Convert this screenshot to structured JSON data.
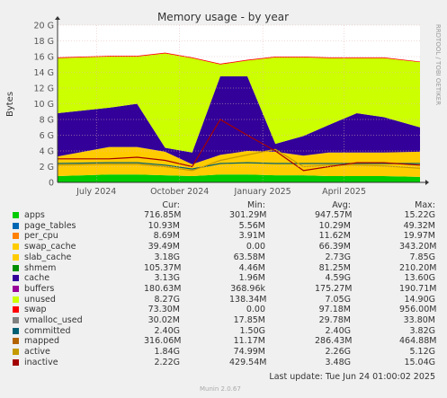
{
  "chart_data": {
    "type": "area",
    "title": "Memory usage - by year",
    "ylabel": "Bytes",
    "side_label": "RRDTOOL / TOBI OETIKER",
    "ylim": [
      0,
      20
    ],
    "y_unit": "G",
    "y_ticks": [
      "0",
      "2 G",
      "4 G",
      "6 G",
      "8 G",
      "10 G",
      "12 G",
      "14 G",
      "16 G",
      "18 G",
      "20 G"
    ],
    "x_ticks": [
      "July 2024",
      "October 2024",
      "January 2025",
      "April 2025"
    ],
    "x_tick_dates": [
      "2024-07-01",
      "2024-10-01",
      "2025-01-01",
      "2025-04-01"
    ],
    "x_range": [
      "2024-05-19",
      "2025-06-24"
    ],
    "grid": true,
    "columns": [
      "Cur:",
      "Min:",
      "Avg:",
      "Max:"
    ],
    "legend": [
      {
        "name": "apps",
        "color": "#00cc00",
        "cur": "716.85M",
        "min": "301.29M",
        "avg": "947.57M",
        "max": "15.22G"
      },
      {
        "name": "page_tables",
        "color": "#0066b3",
        "cur": "10.93M",
        "min": "5.56M",
        "avg": "10.29M",
        "max": "49.32M"
      },
      {
        "name": "per_cpu",
        "color": "#ff8000",
        "cur": "8.69M",
        "min": "3.91M",
        "avg": "11.62M",
        "max": "19.97M"
      },
      {
        "name": "swap_cache",
        "color": "#ffcc00",
        "cur": "39.49M",
        "min": "0.00",
        "avg": "66.39M",
        "max": "343.20M"
      },
      {
        "name": "slab_cache",
        "color": "#ffcc00",
        "cur": "3.18G",
        "min": "63.58M",
        "avg": "2.73G",
        "max": "7.85G"
      },
      {
        "name": "shmem",
        "color": "#008f00",
        "cur": "105.37M",
        "min": "4.46M",
        "avg": "81.25M",
        "max": "210.20M"
      },
      {
        "name": "cache",
        "color": "#330099",
        "cur": "3.13G",
        "min": "1.96M",
        "avg": "4.59G",
        "max": "13.60G"
      },
      {
        "name": "buffers",
        "color": "#990099",
        "cur": "180.63M",
        "min": "368.96k",
        "avg": "175.27M",
        "max": "190.71M"
      },
      {
        "name": "unused",
        "color": "#ccff00",
        "cur": "8.27G",
        "min": "138.34M",
        "avg": "7.05G",
        "max": "14.90G"
      },
      {
        "name": "swap",
        "color": "#ff0000",
        "cur": "73.30M",
        "min": "0.00",
        "avg": "97.18M",
        "max": "956.00M"
      },
      {
        "name": "vmalloc_used",
        "color": "#808080",
        "cur": "30.02M",
        "min": "17.85M",
        "avg": "29.78M",
        "max": "33.80M"
      },
      {
        "name": "committed",
        "color": "#005f73",
        "cur": "2.40G",
        "min": "1.50G",
        "avg": "2.40G",
        "max": "3.82G"
      },
      {
        "name": "mapped",
        "color": "#b36200",
        "cur": "316.06M",
        "min": "11.17M",
        "avg": "286.43M",
        "max": "464.88M"
      },
      {
        "name": "active",
        "color": "#c49a00",
        "cur": "1.84G",
        "min": "74.99M",
        "avg": "2.26G",
        "max": "5.12G"
      },
      {
        "name": "inactive",
        "color": "#a30000",
        "cur": "2.22G",
        "min": "429.54M",
        "avg": "3.48G",
        "max": "15.04G"
      }
    ],
    "series_samples": {
      "months": [
        "2024-06",
        "2024-07",
        "2024-08",
        "2024-09",
        "2024-10",
        "2024-11",
        "2024-12",
        "2025-01",
        "2025-02",
        "2025-03",
        "2025-04",
        "2025-05",
        "2025-06"
      ],
      "apps_G": [
        0.8,
        1.0,
        1.0,
        0.9,
        0.8,
        1.0,
        1.0,
        0.9,
        0.9,
        0.8,
        0.8,
        0.8,
        0.7
      ],
      "slab_cache_G": [
        2.5,
        3.5,
        3.5,
        3.0,
        1.5,
        2.5,
        3.0,
        3.0,
        2.5,
        3.0,
        3.0,
        3.0,
        3.2
      ],
      "cache_G": [
        5.5,
        5.0,
        5.5,
        0.5,
        1.5,
        10.0,
        9.5,
        1.0,
        2.5,
        3.5,
        5.0,
        4.5,
        3.1
      ],
      "unused_G": [
        7.0,
        6.5,
        6.0,
        12.0,
        12.0,
        1.5,
        2.0,
        11.0,
        10.0,
        8.5,
        7.0,
        7.5,
        8.3
      ],
      "swap_G": [
        0.1,
        0.1,
        0.1,
        0.1,
        0.1,
        0.1,
        0.1,
        0.1,
        0.1,
        0.1,
        0.1,
        0.1,
        0.07
      ],
      "committed_G": [
        2.4,
        2.5,
        2.5,
        2.2,
        1.7,
        2.4,
        2.5,
        2.4,
        2.4,
        2.4,
        2.4,
        2.4,
        2.4
      ],
      "active_G": [
        2.2,
        2.3,
        2.3,
        2.0,
        1.5,
        2.8,
        3.5,
        4.2,
        2.0,
        2.2,
        2.2,
        2.1,
        1.8
      ],
      "inactive_G": [
        3.0,
        3.0,
        3.2,
        2.8,
        2.0,
        8.0,
        6.0,
        4.0,
        1.5,
        2.0,
        2.5,
        2.5,
        2.2
      ]
    }
  },
  "footer": {
    "last_update": "Last update:  Tue Jun 24 01:00:02 2025",
    "version": "Munin 2.0.67"
  }
}
